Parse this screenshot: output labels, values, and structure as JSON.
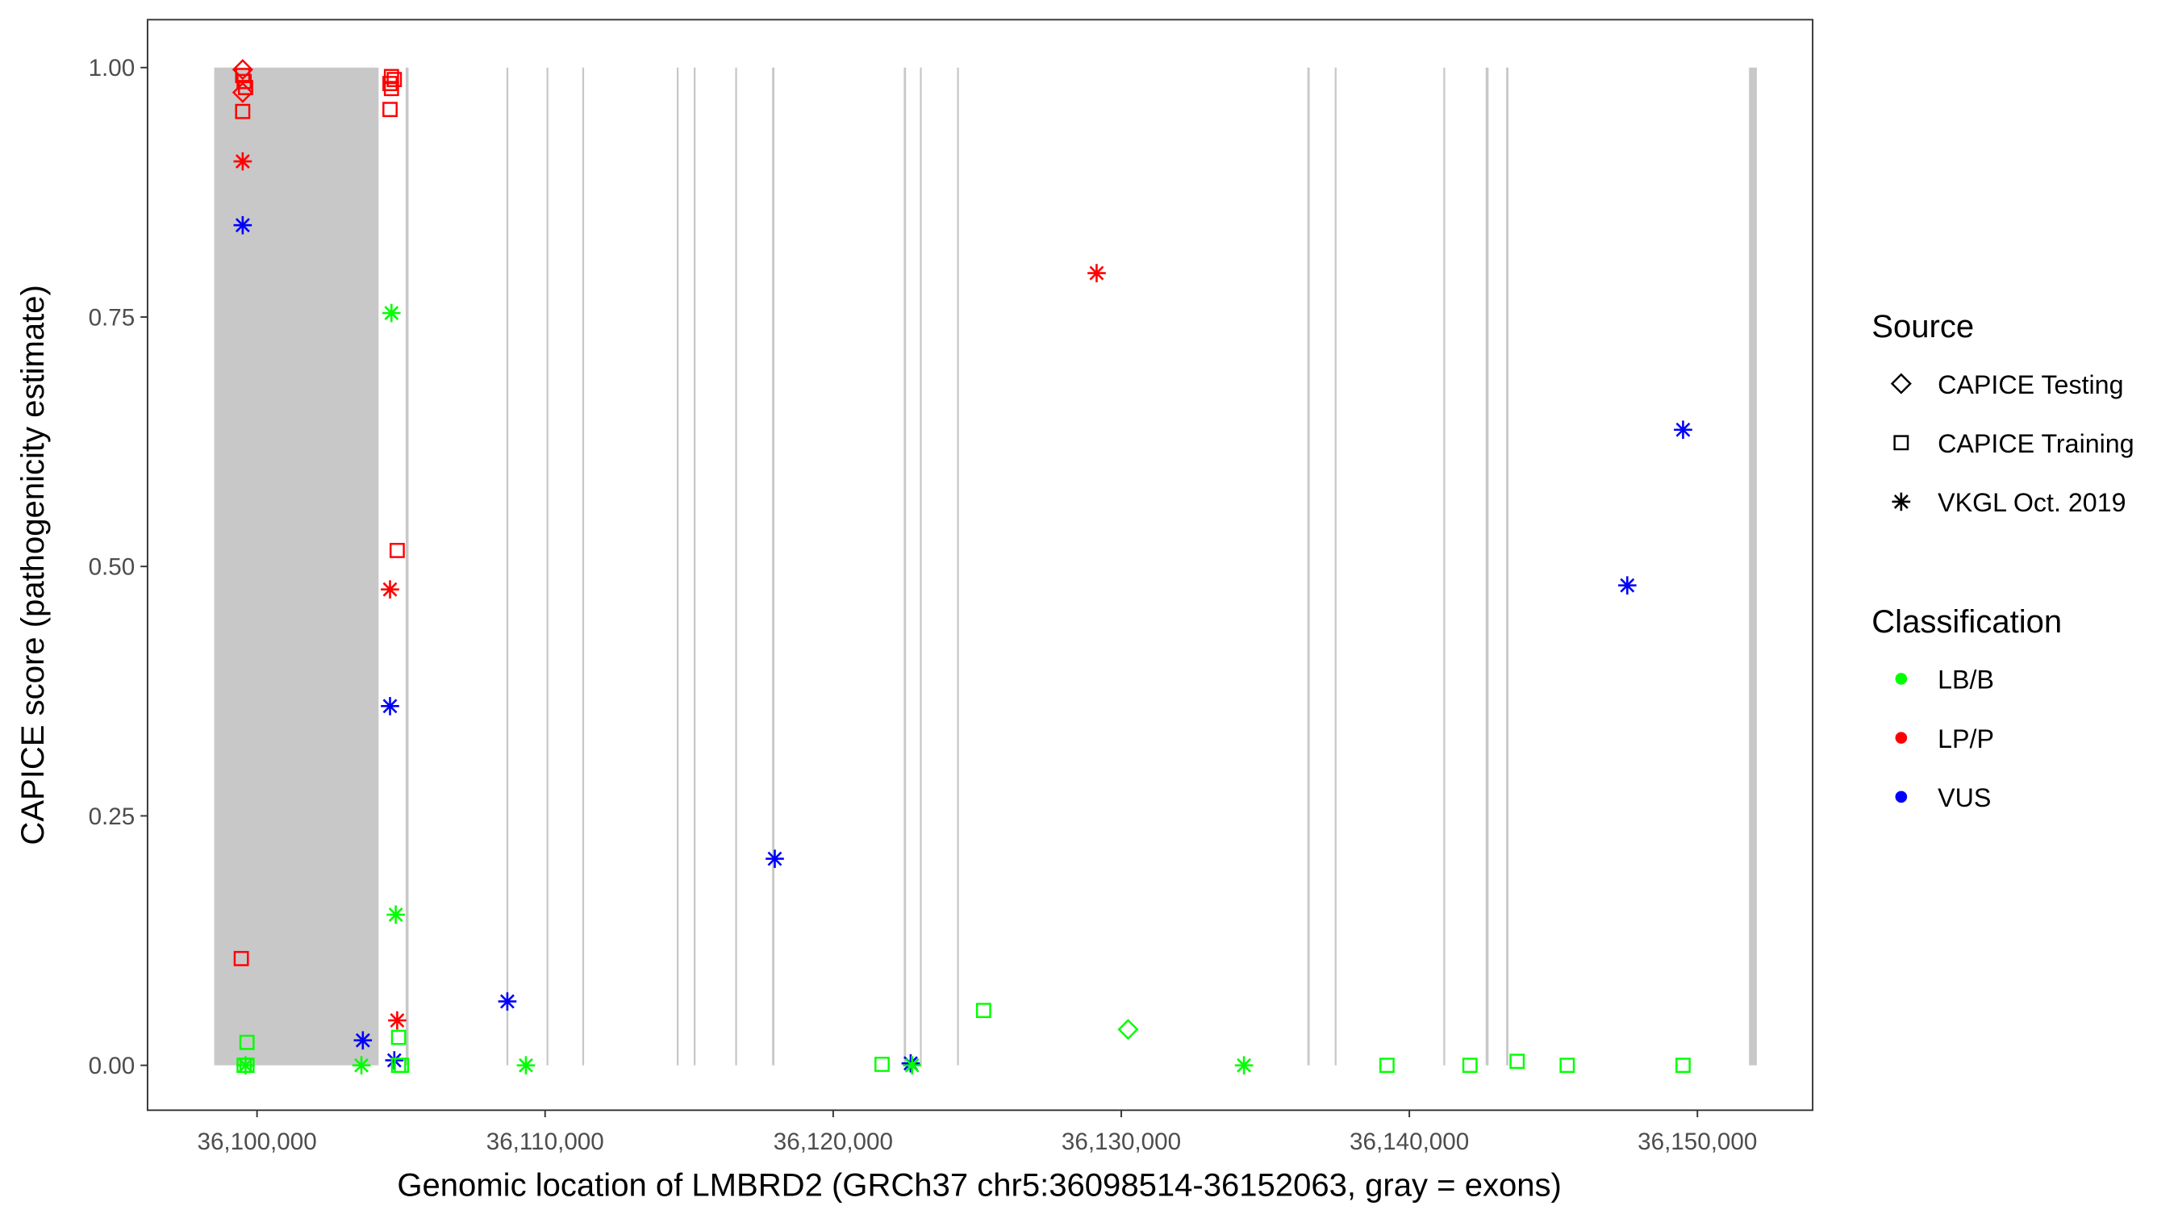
{
  "chart_data": {
    "type": "scatter",
    "xlabel": "Genomic location of LMBRD2 (GRCh37 chr5:36098514-36152063, gray = exons)",
    "ylabel": "CAPICE score (pathogenicity estimate)",
    "xlim": [
      36096200,
      36154000
    ],
    "ylim": [
      -0.045,
      1.048
    ],
    "x_ticks": [
      36100000,
      36110000,
      36120000,
      36130000,
      36140000,
      36150000
    ],
    "x_tick_labels": [
      "36,100,000",
      "36,110,000",
      "36,120,000",
      "36,130,000",
      "36,140,000",
      "36,150,000"
    ],
    "y_ticks": [
      0,
      0.25,
      0.5,
      0.75,
      1.0
    ],
    "y_tick_labels": [
      "0.00",
      "0.25",
      "0.50",
      "0.75",
      "1.00"
    ],
    "grid": false,
    "legend_placement": "right",
    "exon_color": "#c8c8c8",
    "exons": [
      [
        36098514,
        36104220
      ],
      [
        36105160,
        36105260
      ],
      [
        36108660,
        36108720
      ],
      [
        36110050,
        36110110
      ],
      [
        36111290,
        36111350
      ],
      [
        36114570,
        36114630
      ],
      [
        36115160,
        36115220
      ],
      [
        36116600,
        36116660
      ],
      [
        36117880,
        36117960
      ],
      [
        36122450,
        36122530
      ],
      [
        36123010,
        36123070
      ],
      [
        36124300,
        36124360
      ],
      [
        36136460,
        36136540
      ],
      [
        36137410,
        36137470
      ],
      [
        36141180,
        36141240
      ],
      [
        36142650,
        36142750
      ],
      [
        36143360,
        36143440
      ],
      [
        36151790,
        36152063
      ]
    ],
    "legends": [
      {
        "title": "Source",
        "kind": "shape",
        "entries": [
          {
            "label": "CAPICE Testing",
            "shape": "diamond"
          },
          {
            "label": "CAPICE Training",
            "shape": "square"
          },
          {
            "label": "VKGL Oct. 2019",
            "shape": "asterisk"
          }
        ]
      },
      {
        "title": "Classification",
        "kind": "color",
        "entries": [
          {
            "label": "LB/B",
            "color": "#00ff00"
          },
          {
            "label": "LP/P",
            "color": "#ff0000"
          },
          {
            "label": "VUS",
            "color": "#0000ff"
          }
        ]
      }
    ],
    "points": [
      {
        "x": 36099503,
        "y": 0.998,
        "source": "CAPICE Testing",
        "class": "LP/P"
      },
      {
        "x": 36099503,
        "y": 0.975,
        "source": "CAPICE Testing",
        "class": "LP/P"
      },
      {
        "x": 36099503,
        "y": 0.992,
        "source": "CAPICE Training",
        "class": "LP/P"
      },
      {
        "x": 36099553,
        "y": 0.986,
        "source": "CAPICE Training",
        "class": "LP/P"
      },
      {
        "x": 36099603,
        "y": 0.98,
        "source": "CAPICE Training",
        "class": "LP/P"
      },
      {
        "x": 36099503,
        "y": 0.956,
        "source": "CAPICE Training",
        "class": "LP/P"
      },
      {
        "x": 36099503,
        "y": 0.906,
        "source": "VKGL Oct. 2019",
        "class": "LP/P"
      },
      {
        "x": 36099454,
        "y": 0.107,
        "source": "CAPICE Training",
        "class": "LP/P"
      },
      {
        "x": 36104667,
        "y": 0.991,
        "source": "CAPICE Training",
        "class": "LP/P"
      },
      {
        "x": 36104766,
        "y": 0.988,
        "source": "CAPICE Training",
        "class": "LP/P"
      },
      {
        "x": 36104617,
        "y": 0.984,
        "source": "CAPICE Training",
        "class": "LP/P"
      },
      {
        "x": 36104667,
        "y": 0.979,
        "source": "CAPICE Training",
        "class": "LP/P"
      },
      {
        "x": 36104617,
        "y": 0.958,
        "source": "CAPICE Training",
        "class": "LP/P"
      },
      {
        "x": 36104866,
        "y": 0.516,
        "source": "CAPICE Training",
        "class": "LP/P"
      },
      {
        "x": 36104617,
        "y": 0.477,
        "source": "VKGL Oct. 2019",
        "class": "LP/P"
      },
      {
        "x": 36104866,
        "y": 0.045,
        "source": "VKGL Oct. 2019",
        "class": "LP/P"
      },
      {
        "x": 36129145,
        "y": 0.794,
        "source": "VKGL Oct. 2019",
        "class": "LP/P"
      },
      {
        "x": 36099503,
        "y": 0.842,
        "source": "VKGL Oct. 2019",
        "class": "VUS"
      },
      {
        "x": 36104617,
        "y": 0.36,
        "source": "VKGL Oct. 2019",
        "class": "VUS"
      },
      {
        "x": 36103674,
        "y": 0.025,
        "source": "VKGL Oct. 2019",
        "class": "VUS"
      },
      {
        "x": 36104766,
        "y": 0.005,
        "source": "VKGL Oct. 2019",
        "class": "VUS"
      },
      {
        "x": 36108689,
        "y": 0.064,
        "source": "VKGL Oct. 2019",
        "class": "VUS"
      },
      {
        "x": 36117973,
        "y": 0.207,
        "source": "VKGL Oct. 2019",
        "class": "VUS"
      },
      {
        "x": 36122690,
        "y": 0.002,
        "source": "VKGL Oct. 2019",
        "class": "VUS"
      },
      {
        "x": 36147565,
        "y": 0.481,
        "source": "VKGL Oct. 2019",
        "class": "VUS"
      },
      {
        "x": 36149501,
        "y": 0.637,
        "source": "VKGL Oct. 2019",
        "class": "VUS"
      },
      {
        "x": 36104667,
        "y": 0.754,
        "source": "VKGL Oct. 2019",
        "class": "LB/B"
      },
      {
        "x": 36104816,
        "y": 0.151,
        "source": "VKGL Oct. 2019",
        "class": "LB/B"
      },
      {
        "x": 36099603,
        "y": 0.0,
        "source": "VKGL Oct. 2019",
        "class": "LB/B"
      },
      {
        "x": 36103624,
        "y": 0.0,
        "source": "VKGL Oct. 2019",
        "class": "LB/B"
      },
      {
        "x": 36109334,
        "y": 0.0,
        "source": "VKGL Oct. 2019",
        "class": "LB/B"
      },
      {
        "x": 36122739,
        "y": 0.0,
        "source": "VKGL Oct. 2019",
        "class": "LB/B"
      },
      {
        "x": 36134259,
        "y": 0.0,
        "source": "VKGL Oct. 2019",
        "class": "LB/B"
      },
      {
        "x": 36099652,
        "y": 0.023,
        "source": "CAPICE Training",
        "class": "LB/B"
      },
      {
        "x": 36099553,
        "y": 0.0,
        "source": "CAPICE Training",
        "class": "LB/B"
      },
      {
        "x": 36099652,
        "y": 0.0,
        "source": "CAPICE Training",
        "class": "LB/B"
      },
      {
        "x": 36104915,
        "y": 0.028,
        "source": "CAPICE Training",
        "class": "LB/B"
      },
      {
        "x": 36104915,
        "y": 0.0,
        "source": "CAPICE Training",
        "class": "LB/B"
      },
      {
        "x": 36105015,
        "y": 0.0,
        "source": "CAPICE Training",
        "class": "LB/B"
      },
      {
        "x": 36121697,
        "y": 0.001,
        "source": "CAPICE Training",
        "class": "LB/B"
      },
      {
        "x": 36125222,
        "y": 0.055,
        "source": "CAPICE Training",
        "class": "LB/B"
      },
      {
        "x": 36139224,
        "y": 0.0,
        "source": "CAPICE Training",
        "class": "LB/B"
      },
      {
        "x": 36142103,
        "y": 0.0,
        "source": "CAPICE Training",
        "class": "LB/B"
      },
      {
        "x": 36143742,
        "y": 0.004,
        "source": "CAPICE Training",
        "class": "LB/B"
      },
      {
        "x": 36145480,
        "y": 0.0,
        "source": "CAPICE Training",
        "class": "LB/B"
      },
      {
        "x": 36149501,
        "y": 0.0,
        "source": "CAPICE Training",
        "class": "LB/B"
      },
      {
        "x": 36130237,
        "y": 0.036,
        "source": "CAPICE Testing",
        "class": "LB/B"
      }
    ]
  }
}
